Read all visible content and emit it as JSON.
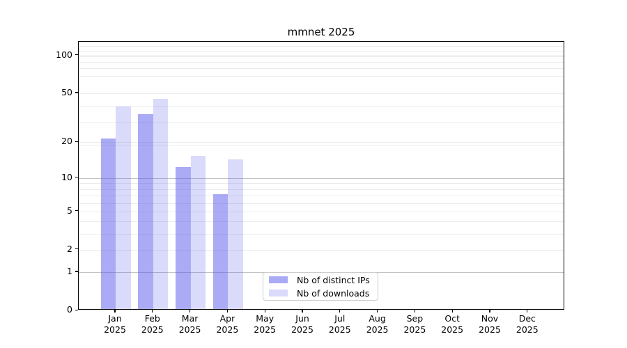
{
  "page": {
    "background": "#ffffff"
  },
  "chart_data": {
    "type": "bar",
    "title": "mmnet 2025",
    "categories": [
      "Jan 2025",
      "Feb 2025",
      "Mar 2025",
      "Apr 2025",
      "May 2025",
      "Jun 2025",
      "Jul 2025",
      "Aug 2025",
      "Sep 2025",
      "Oct 2025",
      "Nov 2025",
      "Dec 2025"
    ],
    "series": [
      {
        "name": "Nb of distinct IPs",
        "color": "rgba(88,88,235,0.50)",
        "values": [
          21,
          33,
          12,
          7,
          0,
          0,
          0,
          0,
          0,
          0,
          0,
          0
        ]
      },
      {
        "name": "Nb of downloads",
        "color": "rgba(88,88,235,0.22)",
        "values": [
          38,
          44,
          15,
          14,
          0,
          0,
          0,
          0,
          0,
          0,
          0,
          0
        ]
      }
    ],
    "y_ticks": [
      0,
      1,
      2,
      5,
      10,
      20,
      50,
      100
    ],
    "y_scale": "log10(1+v)",
    "ylim": [
      0,
      128
    ],
    "xlabel": "",
    "ylabel": "",
    "grid": "horizontal",
    "legend_position": "lower center inside"
  },
  "colors": {
    "grid_major": "#c3c3c3",
    "grid_minor": "#ebebeb",
    "axis_border": "#000000",
    "legend_border": "#cccccc",
    "text": "#000000"
  }
}
